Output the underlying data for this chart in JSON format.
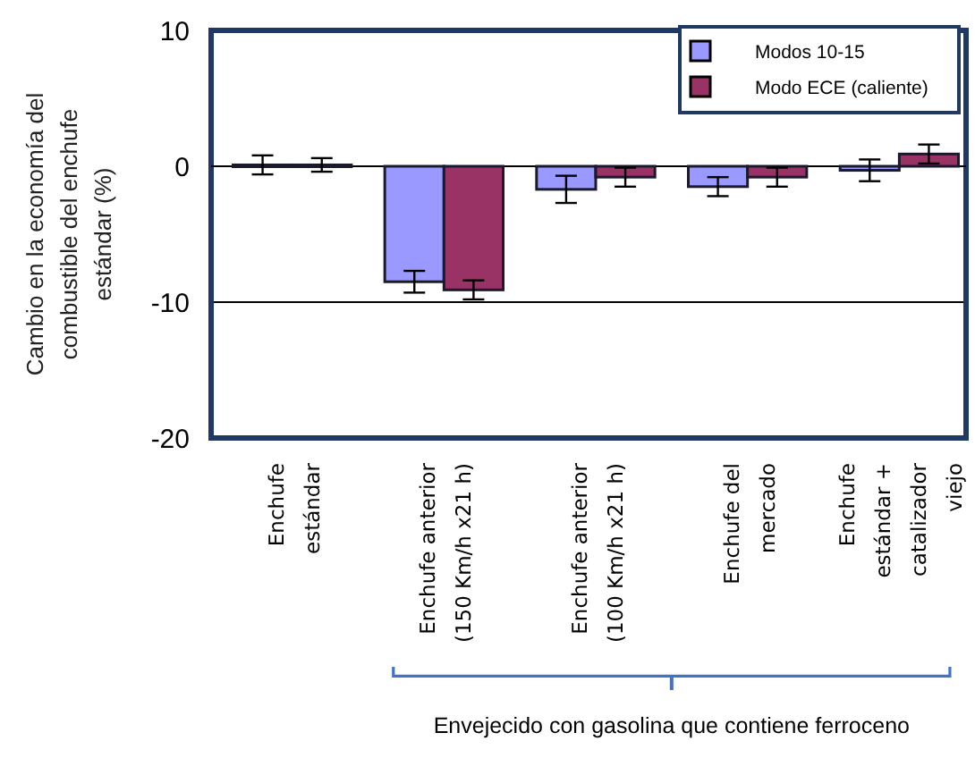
{
  "chart_data": {
    "type": "bar",
    "ylabel": "Cambio en la economía del combustible del enchufe estándar (%)",
    "categories": [
      "Enchufe\nestándar",
      "Enchufe anterior\n(150 Km/h x21 h)",
      "Enchufe anterior\n(100 Km/h x21 h)",
      "Enchufe del\nmercado",
      "Enchufe\nestándar +\ncatalizador\nviejo"
    ],
    "series": [
      {
        "name": "Modos 10-15",
        "color": "#9999ff",
        "values": [
          0.1,
          -8.5,
          -1.7,
          -1.5,
          -0.3
        ],
        "errors": [
          0.7,
          0.8,
          1.0,
          0.7,
          0.8
        ]
      },
      {
        "name": "Modo ECE (caliente)",
        "color": "#993366",
        "values": [
          0.1,
          -9.1,
          -0.8,
          -0.8,
          0.9
        ],
        "errors": [
          0.5,
          0.7,
          0.7,
          0.7,
          0.7
        ]
      }
    ],
    "ylim": [
      -20,
      10
    ],
    "yticks": [
      -20,
      -10,
      0,
      10
    ],
    "grid": "y",
    "legend": "top right",
    "annotations": [
      "Envejecido con gasolina que contiene ferroceno"
    ]
  }
}
